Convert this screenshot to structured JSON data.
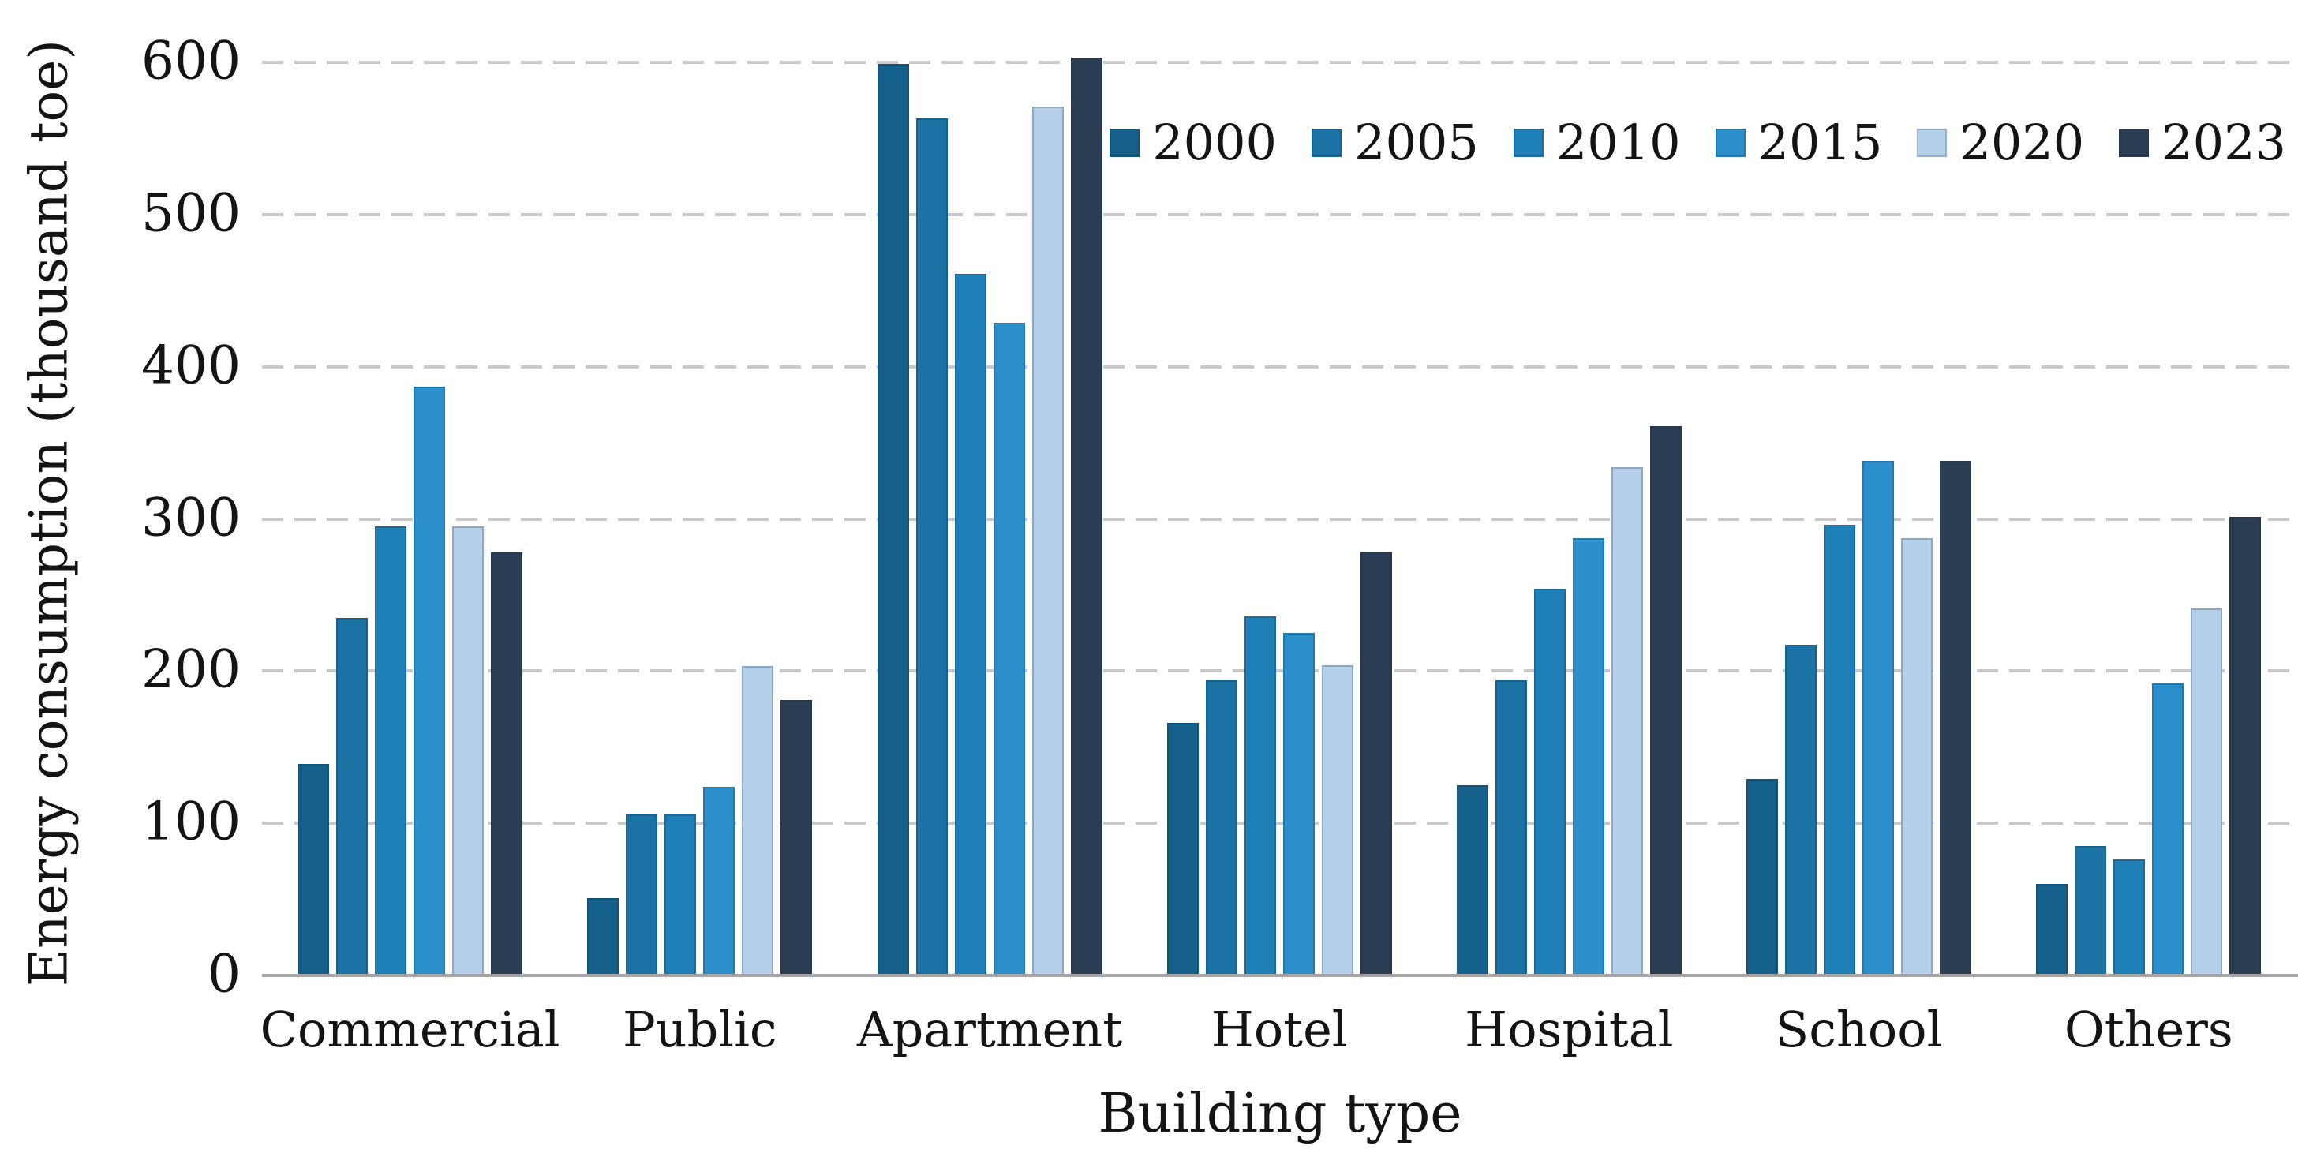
{
  "chart_data": {
    "type": "bar",
    "title": "",
    "xlabel": "Building type",
    "ylabel": "Energy consumption (thousand toe)",
    "categories": [
      "Commercial",
      "Public",
      "Apartment",
      "Hotel",
      "Hospital",
      "School",
      "Others"
    ],
    "series": [
      {
        "name": "2000",
        "color": "#16618C",
        "values": [
          138,
          50,
          598,
          165,
          124,
          128,
          59
        ]
      },
      {
        "name": "2005",
        "color": "#1A73A4",
        "values": [
          234,
          105,
          562,
          193,
          193,
          216,
          84
        ]
      },
      {
        "name": "2010",
        "color": "#1F80B8",
        "values": [
          294,
          105,
          460,
          235,
          253,
          295,
          75
        ]
      },
      {
        "name": "2015",
        "color": "#2A8FCA",
        "values": [
          386,
          123,
          428,
          224,
          286,
          337,
          191
        ]
      },
      {
        "name": "2020",
        "color": "#B6D0EB",
        "values": [
          294,
          202,
          570,
          203,
          333,
          286,
          240
        ]
      },
      {
        "name": "2023",
        "color": "#2B3D53",
        "values": [
          277,
          180,
          602,
          277,
          360,
          337,
          300
        ]
      }
    ],
    "ylim": [
      0,
      600
    ],
    "yticks": [
      0,
      100,
      200,
      300,
      400,
      500,
      600
    ],
    "grid": "horizontal-dashed",
    "gridline_color": "#c9c9c9",
    "axis_line_color": "#a6a6a6",
    "legend_position": "top-right",
    "legend_labels": [
      "2000",
      "2005",
      "2010",
      "2015",
      "2020",
      "2023"
    ]
  }
}
